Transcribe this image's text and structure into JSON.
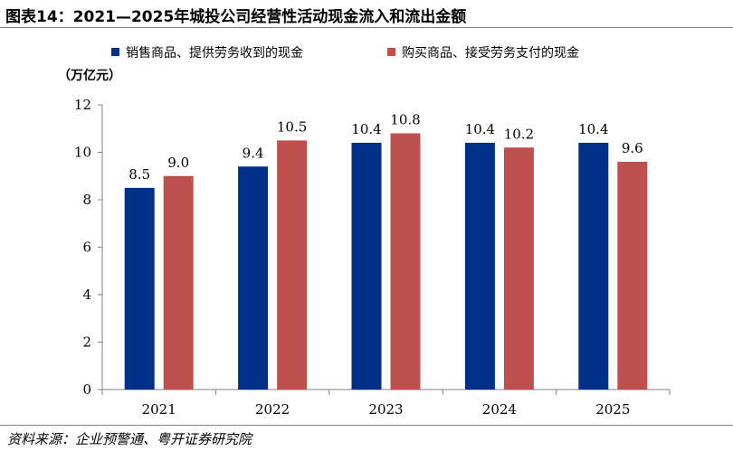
{
  "title": "图表14：2021—2025年城投公司经营性活动现金流入和流出金额",
  "source": "资料来源：企业预警通、粤开证券研究院",
  "chart_data": {
    "type": "bar",
    "categories": [
      "2021",
      "2022",
      "2023",
      "2024",
      "2025"
    ],
    "series": [
      {
        "name": "销售商品、提供劳务收到的现金",
        "color": "#003087",
        "values": [
          8.5,
          9.4,
          10.4,
          10.4,
          10.4
        ]
      },
      {
        "name": "购买商品、接受劳务支付的现金",
        "color": "#C0504D",
        "values": [
          9.0,
          10.5,
          10.8,
          10.2,
          9.6
        ]
      }
    ],
    "ylabel": "（万亿元）",
    "ylim": [
      0,
      12
    ],
    "yticks": [
      0,
      2,
      4,
      6,
      8,
      10,
      12
    ],
    "grid": false,
    "legend": "top"
  }
}
